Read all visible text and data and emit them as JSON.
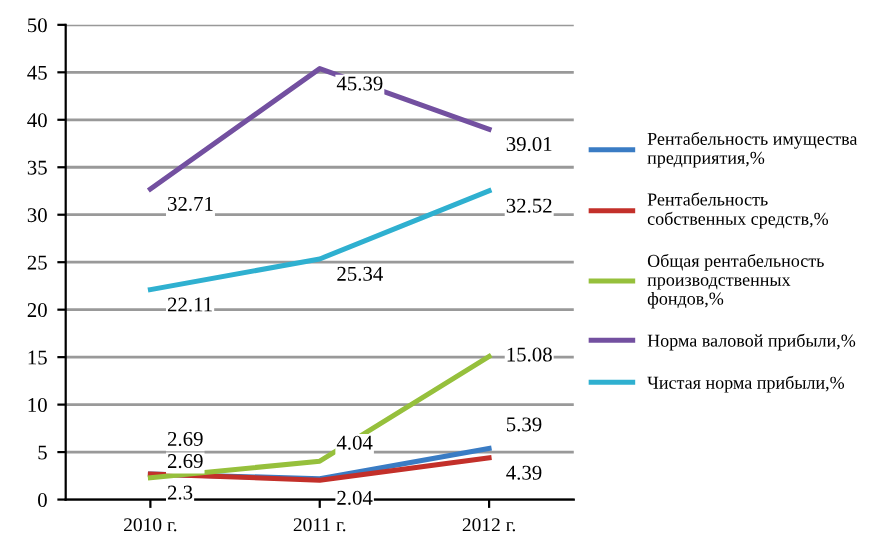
{
  "chart_data": {
    "type": "line",
    "categories": [
      "2010 г.",
      "2011 г.",
      "2012 г."
    ],
    "ylim": [
      0,
      50
    ],
    "yticks": [
      0,
      5,
      10,
      15,
      20,
      25,
      30,
      35,
      40,
      45,
      50
    ],
    "grid": "y",
    "legend": "right",
    "marker": "none",
    "series": [
      {
        "name": "Рентабельность имущества\nпредприятия,%",
        "color": "#3a7cc4",
        "values": [
          2.69,
          2.2,
          5.39
        ],
        "value_labels": [
          "2.69",
          null,
          "5.39"
        ]
      },
      {
        "name": "Рентабельность\nсобственных средств,%",
        "color": "#c3302a",
        "values": [
          2.69,
          2.04,
          4.39
        ],
        "value_labels": [
          "2.69",
          "2.04",
          "4.39"
        ]
      },
      {
        "name": "Общая рентабельность\nпроизводственных\nфондов,%",
        "color": "#96c03c",
        "values": [
          2.3,
          4.04,
          15.08
        ],
        "value_labels": [
          "2.3",
          "4.04",
          "15.08"
        ]
      },
      {
        "name": "Норма валовой прибыли,%",
        "color": "#7350a0",
        "values": [
          32.71,
          45.39,
          39.01
        ],
        "value_labels": [
          "32.71",
          "45.39",
          "39.01"
        ]
      },
      {
        "name": "Чистая норма прибыли,%",
        "color": "#2fb0d0",
        "values": [
          22.11,
          25.34,
          32.52
        ],
        "value_labels": [
          "22.11",
          "25.34",
          "32.52"
        ]
      }
    ]
  }
}
